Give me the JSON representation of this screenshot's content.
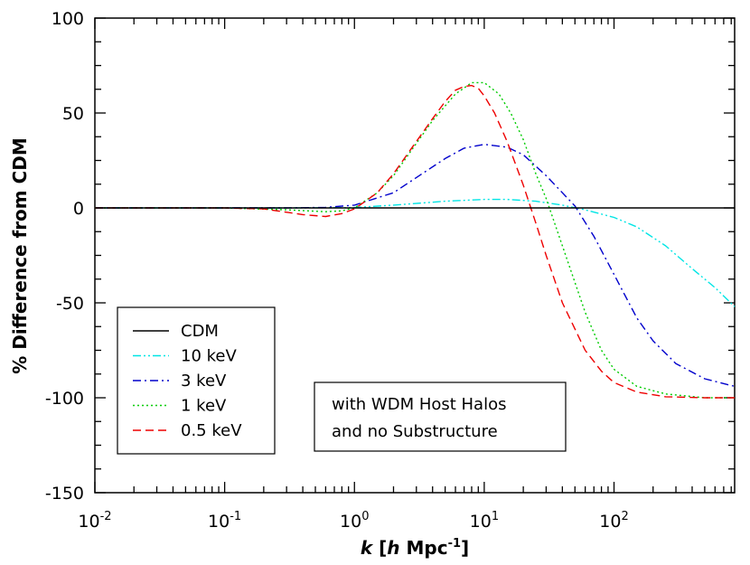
{
  "chart_data": {
    "type": "line",
    "title": "",
    "xlabel": {
      "k": "k",
      "open": " [",
      "h": "h",
      "mid": " Mpc",
      "sup": "-1",
      "close": "]"
    },
    "ylabel": "% Difference from CDM",
    "x_scale": "log",
    "xlim": [
      0.01,
      850
    ],
    "ylim": [
      -150,
      100
    ],
    "y_ticks": [
      100,
      50,
      0,
      -50,
      -100,
      -150
    ],
    "y_tick_labels": [
      "100",
      "50",
      "0",
      "-50",
      "-100",
      "-150"
    ],
    "x_ticks": [
      {
        "base": "10",
        "exp": "-2",
        "value": 0.01
      },
      {
        "base": "10",
        "exp": "-1",
        "value": 0.1
      },
      {
        "base": "10",
        "exp": "0",
        "value": 1
      },
      {
        "base": "10",
        "exp": "1",
        "value": 10
      },
      {
        "base": "10",
        "exp": "2",
        "value": 100
      }
    ],
    "grid": false,
    "legend_position": "bottom-left",
    "annotation": [
      "with WDM Host Halos",
      "and no Substructure"
    ],
    "series": [
      {
        "name": "CDM",
        "color": "#000000",
        "dash": "solid",
        "points": [
          [
            0.01,
            0
          ],
          [
            850,
            0
          ]
        ]
      },
      {
        "name": "10 keV",
        "color": "#00e5e5",
        "dash": "dashdotdot",
        "points": [
          [
            0.01,
            0
          ],
          [
            0.3,
            0
          ],
          [
            1,
            0.2
          ],
          [
            2,
            1.5
          ],
          [
            5,
            3.5
          ],
          [
            10,
            4.5
          ],
          [
            15,
            4.5
          ],
          [
            25,
            3.5
          ],
          [
            40,
            1.5
          ],
          [
            60,
            -1
          ],
          [
            100,
            -5
          ],
          [
            150,
            -10
          ],
          [
            250,
            -20
          ],
          [
            400,
            -32
          ],
          [
            600,
            -42
          ],
          [
            850,
            -52
          ]
        ]
      },
      {
        "name": "3 keV",
        "color": "#0000cc",
        "dash": "dashdot",
        "points": [
          [
            0.01,
            0
          ],
          [
            0.3,
            0
          ],
          [
            0.6,
            0.3
          ],
          [
            1,
            1.5
          ],
          [
            2,
            8
          ],
          [
            3,
            16
          ],
          [
            5,
            26
          ],
          [
            7,
            31.5
          ],
          [
            10,
            33.5
          ],
          [
            15,
            32
          ],
          [
            20,
            28
          ],
          [
            30,
            17
          ],
          [
            50,
            1
          ],
          [
            70,
            -15
          ],
          [
            100,
            -35
          ],
          [
            150,
            -58
          ],
          [
            200,
            -70
          ],
          [
            300,
            -82
          ],
          [
            500,
            -90
          ],
          [
            850,
            -94
          ]
        ]
      },
      {
        "name": "1 keV",
        "color": "#00cc00",
        "dash": "dotted",
        "points": [
          [
            0.01,
            0
          ],
          [
            0.1,
            0
          ],
          [
            0.3,
            -1
          ],
          [
            0.6,
            -2
          ],
          [
            0.8,
            -1.5
          ],
          [
            1,
            0
          ],
          [
            1.5,
            8
          ],
          [
            2,
            17
          ],
          [
            3,
            34
          ],
          [
            4,
            46
          ],
          [
            6,
            60
          ],
          [
            8,
            66
          ],
          [
            10,
            66
          ],
          [
            13,
            60
          ],
          [
            16,
            50
          ],
          [
            20,
            36
          ],
          [
            25,
            18
          ],
          [
            30,
            5
          ],
          [
            40,
            -20
          ],
          [
            60,
            -55
          ],
          [
            80,
            -75
          ],
          [
            100,
            -85
          ],
          [
            150,
            -94
          ],
          [
            250,
            -98
          ],
          [
            500,
            -100
          ],
          [
            850,
            -100
          ]
        ]
      },
      {
        "name": "0.5 keV",
        "color": "#ee0000",
        "dash": "dashed",
        "points": [
          [
            0.01,
            0
          ],
          [
            0.1,
            0
          ],
          [
            0.2,
            -0.5
          ],
          [
            0.4,
            -3.5
          ],
          [
            0.6,
            -4.5
          ],
          [
            0.8,
            -3
          ],
          [
            1,
            -0.5
          ],
          [
            1.5,
            8
          ],
          [
            2,
            18
          ],
          [
            3,
            35
          ],
          [
            4,
            47
          ],
          [
            5,
            56
          ],
          [
            6,
            62
          ],
          [
            7,
            64
          ],
          [
            8,
            64.5
          ],
          [
            9,
            63
          ],
          [
            10,
            59
          ],
          [
            12,
            50
          ],
          [
            15,
            35
          ],
          [
            20,
            12
          ],
          [
            25,
            -8
          ],
          [
            30,
            -25
          ],
          [
            40,
            -50
          ],
          [
            60,
            -75
          ],
          [
            80,
            -86
          ],
          [
            100,
            -92
          ],
          [
            150,
            -97
          ],
          [
            250,
            -99.5
          ],
          [
            500,
            -100
          ],
          [
            850,
            -100
          ]
        ]
      }
    ]
  }
}
